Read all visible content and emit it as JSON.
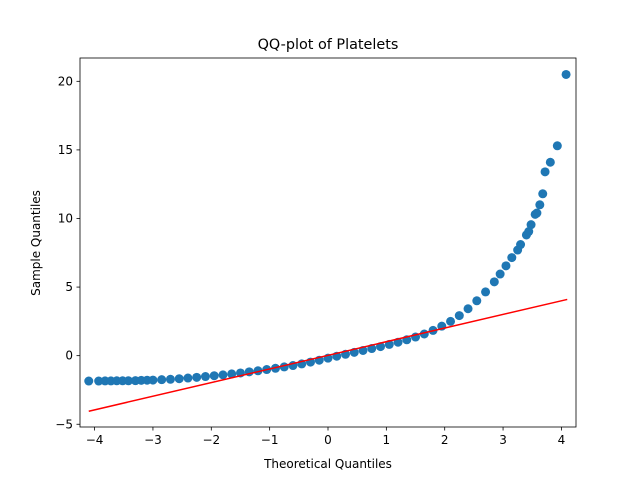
{
  "chart_data": {
    "type": "scatter",
    "title": "QQ-plot of Platelets",
    "xlabel": "Theoretical Quantiles",
    "ylabel": "Sample Quantiles",
    "xlim": [
      -4.25,
      4.25
    ],
    "ylim": [
      -5.2,
      21.7
    ],
    "x_ticks": [
      -4,
      -3,
      -2,
      -1,
      0,
      1,
      2,
      3,
      4
    ],
    "y_ticks": [
      -5,
      0,
      5,
      10,
      15,
      20
    ],
    "grid": false,
    "legend": "none",
    "colors": {
      "points": "#1f77b4",
      "reference_line": "#ff0000"
    },
    "reference_line": {
      "x": [
        -4.1,
        4.1
      ],
      "y": [
        -4.05,
        4.1
      ]
    },
    "series": [
      {
        "points": [
          [
            -4.1,
            -1.85
          ],
          [
            -3.93,
            -1.85
          ],
          [
            -3.82,
            -1.84
          ],
          [
            -3.72,
            -1.84
          ],
          [
            -3.62,
            -1.83
          ],
          [
            -3.52,
            -1.83
          ],
          [
            -3.42,
            -1.83
          ],
          [
            -3.3,
            -1.82
          ],
          [
            -3.2,
            -1.8
          ],
          [
            -3.1,
            -1.79
          ],
          [
            -3.0,
            -1.78
          ],
          [
            -2.85,
            -1.75
          ],
          [
            -2.7,
            -1.72
          ],
          [
            -2.55,
            -1.68
          ],
          [
            -2.4,
            -1.63
          ],
          [
            -2.25,
            -1.58
          ],
          [
            -2.1,
            -1.52
          ],
          [
            -1.95,
            -1.46
          ],
          [
            -1.8,
            -1.4
          ],
          [
            -1.65,
            -1.33
          ],
          [
            -1.5,
            -1.26
          ],
          [
            -1.35,
            -1.18
          ],
          [
            -1.2,
            -1.1
          ],
          [
            -1.05,
            -1.01
          ],
          [
            -0.9,
            -0.92
          ],
          [
            -0.75,
            -0.82
          ],
          [
            -0.6,
            -0.72
          ],
          [
            -0.45,
            -0.6
          ],
          [
            -0.3,
            -0.47
          ],
          [
            -0.15,
            -0.33
          ],
          [
            0.0,
            -0.18
          ],
          [
            0.15,
            -0.04
          ],
          [
            0.3,
            0.1
          ],
          [
            0.45,
            0.24
          ],
          [
            0.6,
            0.38
          ],
          [
            0.75,
            0.52
          ],
          [
            0.9,
            0.66
          ],
          [
            1.05,
            0.82
          ],
          [
            1.2,
            0.98
          ],
          [
            1.35,
            1.16
          ],
          [
            1.5,
            1.36
          ],
          [
            1.65,
            1.58
          ],
          [
            1.8,
            1.84
          ],
          [
            1.95,
            2.15
          ],
          [
            2.1,
            2.5
          ],
          [
            2.25,
            2.92
          ],
          [
            2.4,
            3.42
          ],
          [
            2.55,
            4.0
          ],
          [
            2.7,
            4.65
          ],
          [
            2.85,
            5.38
          ],
          [
            2.95,
            5.95
          ],
          [
            3.05,
            6.55
          ],
          [
            3.15,
            7.15
          ],
          [
            3.25,
            7.7
          ],
          [
            3.3,
            8.1
          ],
          [
            3.4,
            8.8
          ],
          [
            3.44,
            9.05
          ],
          [
            3.48,
            9.55
          ],
          [
            3.55,
            10.3
          ],
          [
            3.58,
            10.4
          ],
          [
            3.63,
            11.0
          ],
          [
            3.68,
            11.8
          ],
          [
            3.72,
            13.4
          ],
          [
            3.81,
            14.1
          ],
          [
            3.93,
            15.3
          ],
          [
            4.08,
            20.5
          ]
        ]
      }
    ]
  }
}
